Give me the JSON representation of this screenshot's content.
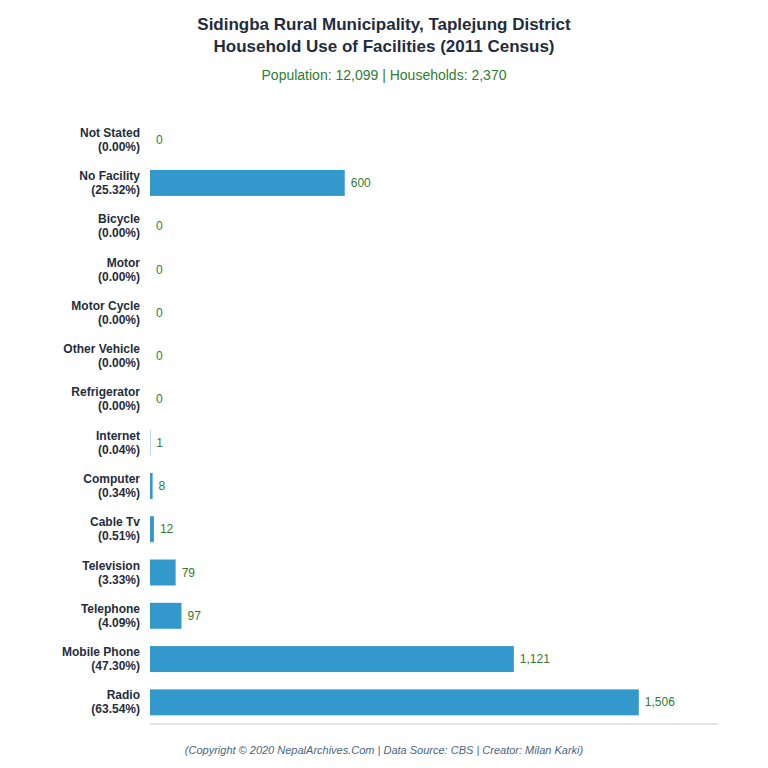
{
  "chart_data": {
    "type": "bar",
    "orientation": "horizontal",
    "title": "Sidingba Rural Municipality, Taplejung District\nHousehold Use of Facilities (2011 Census)",
    "subtitle": "Population: 12,099 | Households: 2,370",
    "annotations": [
      "(Copyright © 2020 NepalArchives.Com | Data Source: CBS | Creator: Milan Karki)"
    ],
    "categories": [
      "Not Stated\n(0.00%)",
      "No Facility\n(25.32%)",
      "Bicycle\n(0.00%)",
      "Motor\n(0.00%)",
      "Motor Cycle\n(0.00%)",
      "Other Vehicle\n(0.00%)",
      "Refrigerator\n(0.00%)",
      "Internet\n(0.04%)",
      "Computer\n(0.34%)",
      "Cable Tv\n(0.51%)",
      "Television\n(3.33%)",
      "Telephone\n(4.09%)",
      "Mobile Phone\n(47.30%)",
      "Radio\n(63.54%)"
    ],
    "values": [
      0,
      600,
      0,
      0,
      0,
      0,
      0,
      1,
      8,
      12,
      79,
      97,
      1121,
      1506
    ],
    "value_labels": [
      "0",
      "600",
      "0",
      "0",
      "0",
      "0",
      "0",
      "1",
      "8",
      "12",
      "79",
      "97",
      "1,121",
      "1,506"
    ],
    "color": "#3399CC",
    "xlim": [
      0,
      1750
    ],
    "data_labels": true,
    "tick_labels": "y",
    "grid": false
  }
}
